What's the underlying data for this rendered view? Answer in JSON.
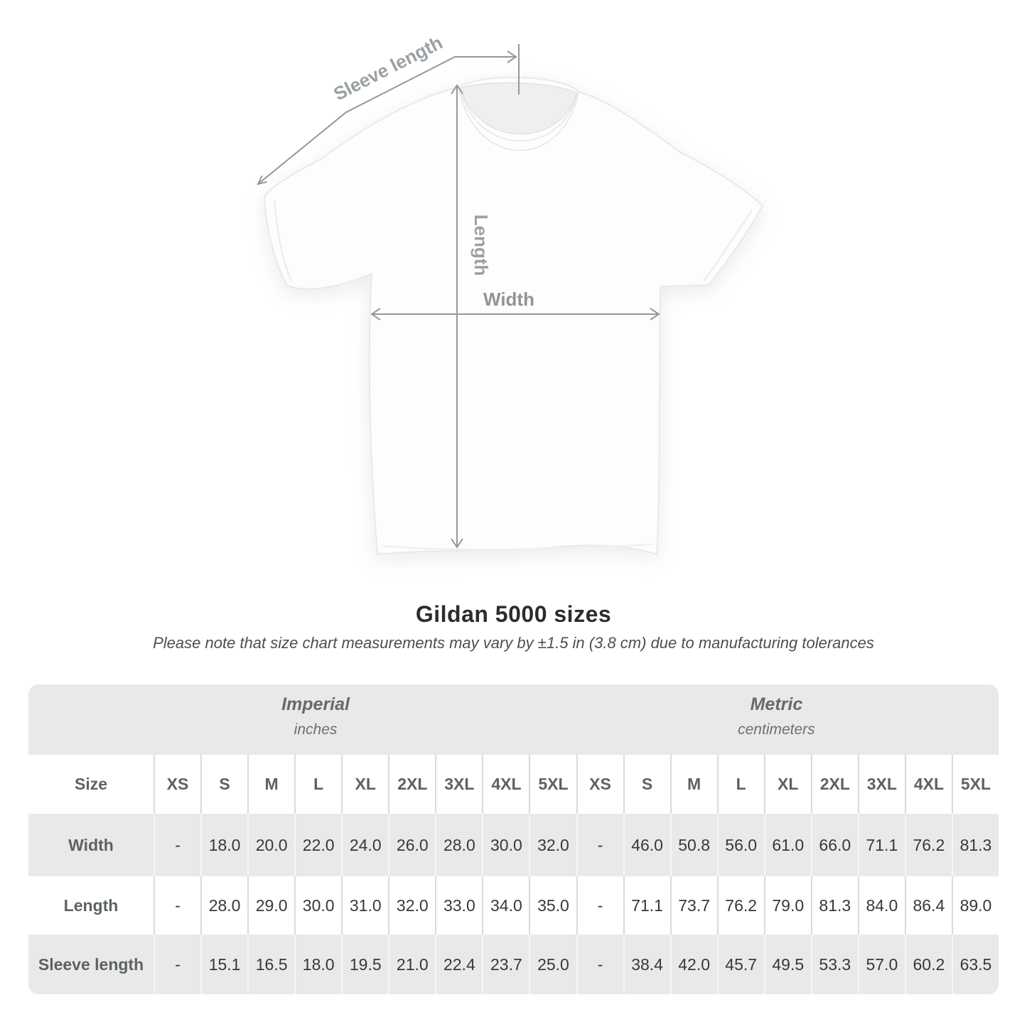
{
  "title": "Gildan 5000 sizes",
  "subtitle": "Please note that size chart measurements may vary by ±1.5 in (3.8 cm) due to manufacturing tolerances",
  "diagram": {
    "labels": {
      "sleeve_length": "Sleeve length",
      "length": "Length",
      "width": "Width"
    }
  },
  "table": {
    "sections": [
      {
        "label": "Imperial",
        "sublabel": "inches"
      },
      {
        "label": "Metric",
        "sublabel": "centimeters"
      }
    ],
    "size_header": "Size",
    "size_columns": [
      "XS",
      "S",
      "M",
      "L",
      "XL",
      "2XL",
      "3XL",
      "4XL",
      "5XL",
      "XS",
      "S",
      "M",
      "L",
      "XL",
      "2XL",
      "3XL",
      "4XL",
      "5XL"
    ],
    "rows": [
      {
        "label": "Width",
        "values": [
          "-",
          "18.0",
          "20.0",
          "22.0",
          "24.0",
          "26.0",
          "28.0",
          "30.0",
          "32.0",
          "-",
          "46.0",
          "50.8",
          "56.0",
          "61.0",
          "66.0",
          "71.1",
          "76.2",
          "81.3"
        ]
      },
      {
        "label": "Length",
        "values": [
          "-",
          "28.0",
          "29.0",
          "30.0",
          "31.0",
          "32.0",
          "33.0",
          "34.0",
          "35.0",
          "-",
          "71.1",
          "73.7",
          "76.2",
          "79.0",
          "81.3",
          "84.0",
          "86.4",
          "89.0"
        ]
      },
      {
        "label": "Sleeve length",
        "values": [
          "-",
          "15.1",
          "16.5",
          "18.0",
          "19.5",
          "21.0",
          "22.4",
          "23.7",
          "25.0",
          "-",
          "38.4",
          "42.0",
          "45.7",
          "49.5",
          "53.3",
          "57.0",
          "60.2",
          "63.5"
        ]
      }
    ]
  },
  "colors": {
    "table_band": "#e9e9e8",
    "alt_row": "#e9e9e8",
    "separator_on_white": "#d9dadb",
    "separator_on_gray": "#f6f6f5",
    "arrow_line": "#94999c",
    "measure_label": "#9aa0a3"
  }
}
